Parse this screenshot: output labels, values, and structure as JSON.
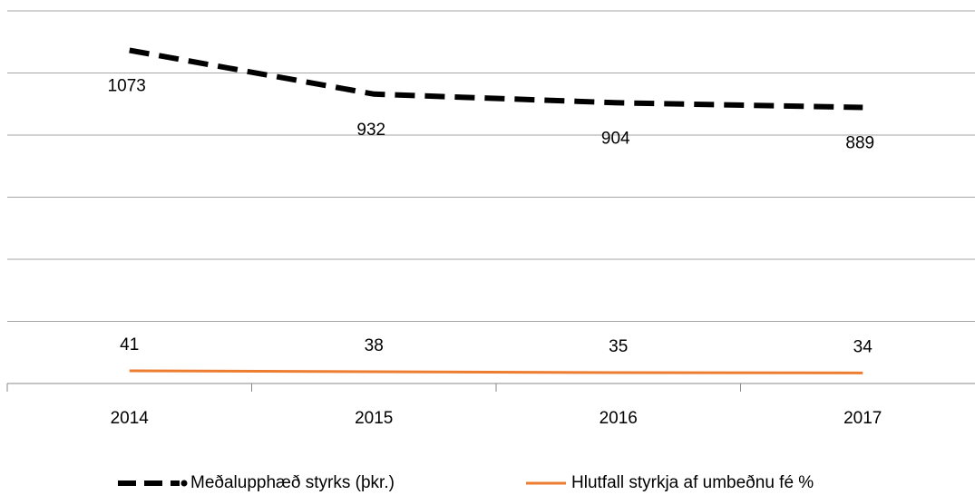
{
  "chart_data": {
    "type": "line",
    "categories": [
      "2014",
      "2015",
      "2016",
      "2017"
    ],
    "series": [
      {
        "name": "Meðalupphæð styrks (þkr.)",
        "color": "#000000",
        "dashed": true,
        "values": [
          1073,
          932,
          904,
          889
        ]
      },
      {
        "name": "Hlutfall styrkja af umbeðnu fé %",
        "color": "#ED7D31",
        "dashed": false,
        "values": [
          41,
          38,
          35,
          34
        ]
      }
    ],
    "ylim": [
      0,
      1200
    ],
    "yticks": [
      0,
      200,
      400,
      600,
      800,
      1000,
      1200
    ],
    "grid": true,
    "legend": "bottom"
  }
}
